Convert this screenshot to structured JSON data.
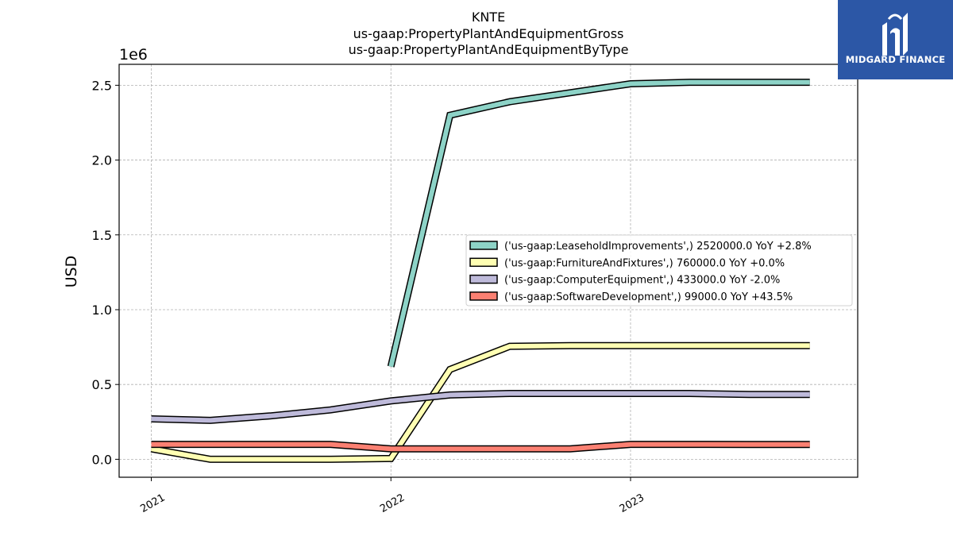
{
  "chart_data": {
    "type": "line",
    "title": [
      "KNTE",
      "us-gaap:PropertyPlantAndEquipmentGross",
      "us-gaap:PropertyPlantAndEquipmentByType"
    ],
    "ylabel": "USD",
    "y_offset_label": "1e6",
    "ylim": [
      -0.12,
      2.64
    ],
    "y_ticks": [
      0.0,
      0.5,
      1.0,
      1.5,
      2.0,
      2.5
    ],
    "y_tick_labels": [
      "0.0",
      "0.5",
      "1.0",
      "1.5",
      "2.0",
      "2.5"
    ],
    "xlim": [
      "2020-11-13",
      "2023-12-13"
    ],
    "x_ticks": [
      "2021-01-01",
      "2022-01-01",
      "2023-01-01"
    ],
    "x_tick_labels": [
      "2021",
      "2022",
      "2023"
    ],
    "grid": true,
    "legend_position": "center-right",
    "series": [
      {
        "name": "('us-gaap:LeaseholdImprovements',) 2520000.0 YoY +2.8%",
        "color": "#8dd3c7",
        "points": [
          [
            "2022-01-01",
            0.62
          ],
          [
            "2022-04-01",
            2.3
          ],
          [
            "2022-07-01",
            2.39
          ],
          [
            "2022-10-01",
            2.45
          ],
          [
            "2023-01-01",
            2.51
          ],
          [
            "2023-04-01",
            2.52
          ],
          [
            "2023-07-01",
            2.52
          ],
          [
            "2023-10-01",
            2.52
          ]
        ]
      },
      {
        "name": "('us-gaap:FurnitureAndFixtures',) 760000.0 YoY +0.0%",
        "color": "#ffffb3",
        "points": [
          [
            "2021-01-01",
            0.07
          ],
          [
            "2021-04-01",
            0.0
          ],
          [
            "2021-07-01",
            0.0
          ],
          [
            "2021-10-01",
            0.0
          ],
          [
            "2022-01-01",
            0.005
          ],
          [
            "2022-04-01",
            0.6
          ],
          [
            "2022-07-01",
            0.755
          ],
          [
            "2022-10-01",
            0.76
          ],
          [
            "2023-01-01",
            0.76
          ],
          [
            "2023-04-01",
            0.76
          ],
          [
            "2023-07-01",
            0.76
          ],
          [
            "2023-10-01",
            0.76
          ]
        ]
      },
      {
        "name": "('us-gaap:ComputerEquipment',) 433000.0 YoY -2.0%",
        "color": "#bebada",
        "points": [
          [
            "2021-01-01",
            0.27
          ],
          [
            "2021-04-01",
            0.26
          ],
          [
            "2021-07-01",
            0.29
          ],
          [
            "2021-10-01",
            0.33
          ],
          [
            "2022-01-01",
            0.39
          ],
          [
            "2022-04-01",
            0.43
          ],
          [
            "2022-07-01",
            0.44
          ],
          [
            "2022-10-01",
            0.44
          ],
          [
            "2023-01-01",
            0.44
          ],
          [
            "2023-04-01",
            0.44
          ],
          [
            "2023-07-01",
            0.433
          ],
          [
            "2023-10-01",
            0.433
          ]
        ]
      },
      {
        "name": "('us-gaap:SoftwareDevelopment',) 99000.0 YoY +43.5%",
        "color": "#fb8072",
        "points": [
          [
            "2021-01-01",
            0.1
          ],
          [
            "2021-04-01",
            0.1
          ],
          [
            "2021-07-01",
            0.1
          ],
          [
            "2021-10-01",
            0.1
          ],
          [
            "2022-01-01",
            0.07
          ],
          [
            "2022-04-01",
            0.07
          ],
          [
            "2022-07-01",
            0.07
          ],
          [
            "2022-10-01",
            0.07
          ],
          [
            "2023-01-01",
            0.1
          ],
          [
            "2023-04-01",
            0.1
          ],
          [
            "2023-07-01",
            0.099
          ],
          [
            "2023-10-01",
            0.099
          ]
        ]
      }
    ]
  },
  "logo": {
    "text": "MIDGARD FINANCE",
    "icon": "midgard-logo-icon",
    "background": "#2c57a6"
  }
}
